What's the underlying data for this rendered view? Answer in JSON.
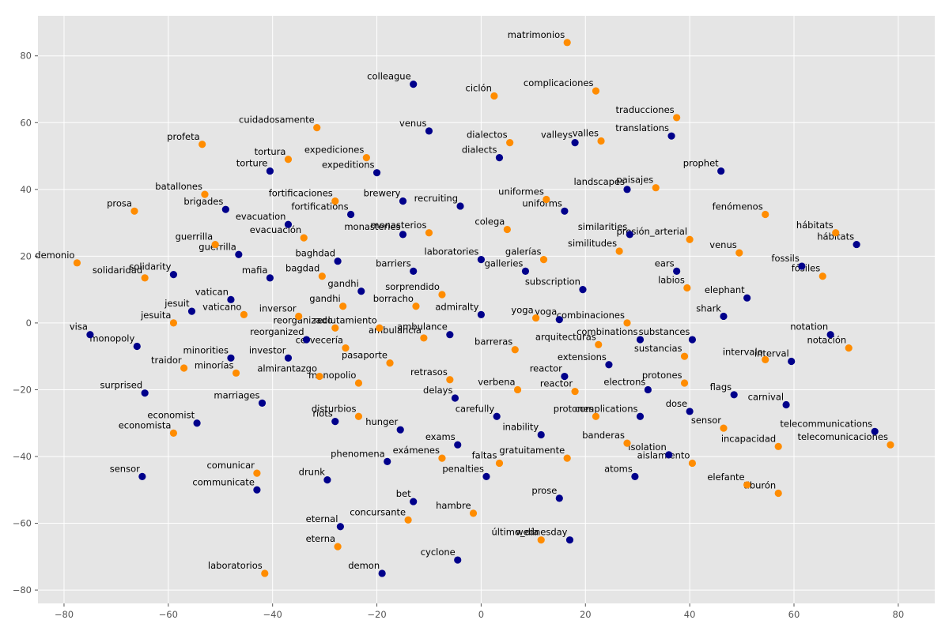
{
  "chart_data": {
    "type": "scatter",
    "title": "",
    "xlabel": "",
    "ylabel": "",
    "xlim": [
      -85,
      87
    ],
    "ylim": [
      -84,
      92
    ],
    "grid": true,
    "xticks": [
      "−80",
      "−60",
      "−40",
      "−20",
      "0",
      "20",
      "40",
      "60",
      "80"
    ],
    "yticks": [
      "−80",
      "−60",
      "−40",
      "−20",
      "0",
      "20",
      "40",
      "60",
      "80"
    ],
    "xtick_values": [
      -80,
      -60,
      -40,
      -20,
      0,
      20,
      40,
      60,
      80
    ],
    "ytick_values": [
      -80,
      -60,
      -40,
      -20,
      0,
      20,
      40,
      60,
      80
    ],
    "colors": {
      "navy": "#00008b",
      "orange": "#ff8c00",
      "background": "#e5e5e5",
      "grid": "#ffffff",
      "tick_text": "#555555"
    },
    "series": [
      {
        "color": "#00008b",
        "points": [
          {
            "x": -13,
            "y": 71.5,
            "label": "colleague"
          },
          {
            "x": -10,
            "y": 57.5,
            "label": "venus"
          },
          {
            "x": -40.5,
            "y": 45.5,
            "label": "torture"
          },
          {
            "x": -20,
            "y": 45,
            "label": "expeditions"
          },
          {
            "x": -49,
            "y": 34,
            "label": "brigades"
          },
          {
            "x": -25,
            "y": 32.5,
            "label": "fortifications"
          },
          {
            "x": -37,
            "y": 29.5,
            "label": "evacuation"
          },
          {
            "x": -15,
            "y": 36.5,
            "label": "brewery"
          },
          {
            "x": -4,
            "y": 35,
            "label": "recruiting"
          },
          {
            "x": 3.5,
            "y": 49.5,
            "label": "dialects"
          },
          {
            "x": -15,
            "y": 26.5,
            "label": "monasteries"
          },
          {
            "x": 18,
            "y": 54,
            "label": "valleys"
          },
          {
            "x": 36.5,
            "y": 56,
            "label": "translations"
          },
          {
            "x": 46,
            "y": 45.5,
            "label": "prophet"
          },
          {
            "x": 28,
            "y": 40,
            "label": "landscapes"
          },
          {
            "x": 16,
            "y": 33.5,
            "label": "uniforms"
          },
          {
            "x": 28.5,
            "y": 26.5,
            "label": "similarities"
          },
          {
            "x": 72,
            "y": 23.5,
            "label": "hábitats"
          },
          {
            "x": 61.5,
            "y": 17,
            "label": "fossils"
          },
          {
            "x": -46.5,
            "y": 20.5,
            "label": "guerrilla"
          },
          {
            "x": -59,
            "y": 14.5,
            "label": "solidarity"
          },
          {
            "x": -40.5,
            "y": 13.5,
            "label": "mafia"
          },
          {
            "x": -27.5,
            "y": 18.5,
            "label": "baghdad"
          },
          {
            "x": -13,
            "y": 15.5,
            "label": "barriers"
          },
          {
            "x": 0,
            "y": 19,
            "label": "laboratories"
          },
          {
            "x": 8.5,
            "y": 15.5,
            "label": "galleries"
          },
          {
            "x": 37.5,
            "y": 15.5,
            "label": "ears"
          },
          {
            "x": 19.5,
            "y": 10,
            "label": "subscription"
          },
          {
            "x": -23,
            "y": 9.5,
            "label": "gandhi"
          },
          {
            "x": -48,
            "y": 7,
            "label": "vatican"
          },
          {
            "x": -55.5,
            "y": 3.5,
            "label": "jesuit"
          },
          {
            "x": 51,
            "y": 7.5,
            "label": "elephant"
          },
          {
            "x": 46.5,
            "y": 2,
            "label": "shark"
          },
          {
            "x": 0,
            "y": 2.5,
            "label": "admiralty"
          },
          {
            "x": 15,
            "y": 1,
            "label": "yoga"
          },
          {
            "x": -75,
            "y": -3.5,
            "label": "visa"
          },
          {
            "x": -66,
            "y": -7,
            "label": "monopoly"
          },
          {
            "x": -6,
            "y": -3.5,
            "label": "ambulance"
          },
          {
            "x": -33.5,
            "y": -5,
            "label": "reorganized"
          },
          {
            "x": 30.5,
            "y": -5,
            "label": "combinations"
          },
          {
            "x": 40.5,
            "y": -5,
            "label": "substances"
          },
          {
            "x": 67,
            "y": -3.5,
            "label": "notation"
          },
          {
            "x": -48,
            "y": -10.5,
            "label": "minorities"
          },
          {
            "x": -37,
            "y": -10.5,
            "label": "investor"
          },
          {
            "x": 24.5,
            "y": -12.5,
            "label": "extensions"
          },
          {
            "x": 59.5,
            "y": -11.5,
            "label": "interval"
          },
          {
            "x": 16,
            "y": -16,
            "label": "reactor"
          },
          {
            "x": -64.5,
            "y": -21,
            "label": "surprised"
          },
          {
            "x": -42,
            "y": -24,
            "label": "marriages"
          },
          {
            "x": -5,
            "y": -22.5,
            "label": "delays"
          },
          {
            "x": 32,
            "y": -20,
            "label": "electrons"
          },
          {
            "x": 48.5,
            "y": -21.5,
            "label": "flags"
          },
          {
            "x": 58.5,
            "y": -24.5,
            "label": "carnival"
          },
          {
            "x": 3,
            "y": -28,
            "label": "carefully"
          },
          {
            "x": 30.5,
            "y": -28,
            "label": "complications"
          },
          {
            "x": 40,
            "y": -26.5,
            "label": "dose"
          },
          {
            "x": -54.5,
            "y": -30,
            "label": "economist"
          },
          {
            "x": -28,
            "y": -29.5,
            "label": "riots"
          },
          {
            "x": -15.5,
            "y": -32,
            "label": "hunger"
          },
          {
            "x": 11.5,
            "y": -33.5,
            "label": "inability"
          },
          {
            "x": 75.5,
            "y": -32.5,
            "label": "telecommunications"
          },
          {
            "x": -4.5,
            "y": -36.5,
            "label": "exams"
          },
          {
            "x": 36,
            "y": -39.5,
            "label": "isolation"
          },
          {
            "x": -18,
            "y": -41.5,
            "label": "phenomena"
          },
          {
            "x": -65,
            "y": -46,
            "label": "sensor"
          },
          {
            "x": -29.5,
            "y": -47,
            "label": "drunk"
          },
          {
            "x": 1,
            "y": -46,
            "label": "penalties"
          },
          {
            "x": 29.5,
            "y": -46,
            "label": "atoms"
          },
          {
            "x": -43,
            "y": -50,
            "label": "communicate"
          },
          {
            "x": 15,
            "y": -52.5,
            "label": "prose"
          },
          {
            "x": -13,
            "y": -53.5,
            "label": "bet"
          },
          {
            "x": -27,
            "y": -61,
            "label": "eternal"
          },
          {
            "x": 17,
            "y": -65,
            "label": "wednesday"
          },
          {
            "x": -4.5,
            "y": -71,
            "label": "cyclone"
          },
          {
            "x": -19,
            "y": -75,
            "label": "demon"
          }
        ]
      },
      {
        "color": "#ff8c00",
        "points": [
          {
            "x": 16.5,
            "y": 84,
            "label": "matrimonios"
          },
          {
            "x": 2.5,
            "y": 68,
            "label": "ciclón"
          },
          {
            "x": 22,
            "y": 69.5,
            "label": "complicaciones"
          },
          {
            "x": 37.5,
            "y": 61.5,
            "label": "traducciones"
          },
          {
            "x": -31.5,
            "y": 58.5,
            "label": "cuidadosamente"
          },
          {
            "x": -53.5,
            "y": 53.5,
            "label": "profeta"
          },
          {
            "x": 5.5,
            "y": 54,
            "label": "dialectos"
          },
          {
            "x": 23,
            "y": 54.5,
            "label": "valles"
          },
          {
            "x": -37,
            "y": 49,
            "label": "tortura"
          },
          {
            "x": -22,
            "y": 49.5,
            "label": "expediciones"
          },
          {
            "x": 33.5,
            "y": 40.5,
            "label": "paisajes"
          },
          {
            "x": -53,
            "y": 38.5,
            "label": "batallones"
          },
          {
            "x": -28,
            "y": 36.5,
            "label": "fortificaciones"
          },
          {
            "x": 12.5,
            "y": 37,
            "label": "uniformes"
          },
          {
            "x": 54.5,
            "y": 32.5,
            "label": "fenómenos"
          },
          {
            "x": -66.5,
            "y": 33.5,
            "label": "prosa"
          },
          {
            "x": -34,
            "y": 25.5,
            "label": "evacuación"
          },
          {
            "x": -10,
            "y": 27,
            "label": "monasterios"
          },
          {
            "x": 5,
            "y": 28,
            "label": "colega"
          },
          {
            "x": 40,
            "y": 25,
            "label": "presión_arterial"
          },
          {
            "x": 68,
            "y": 27,
            "label": "hábitats"
          },
          {
            "x": -51,
            "y": 23.5,
            "label": "guerrilla"
          },
          {
            "x": 26.5,
            "y": 21.5,
            "label": "similitudes"
          },
          {
            "x": 49.5,
            "y": 21,
            "label": "venus"
          },
          {
            "x": 12,
            "y": 19,
            "label": "galerías"
          },
          {
            "x": -77.5,
            "y": 18,
            "label": "demonio"
          },
          {
            "x": -64.5,
            "y": 13.5,
            "label": "solidaridad"
          },
          {
            "x": -30.5,
            "y": 14,
            "label": "bagdad"
          },
          {
            "x": 65.5,
            "y": 14,
            "label": "fósiles"
          },
          {
            "x": 39.5,
            "y": 10.5,
            "label": "labios"
          },
          {
            "x": -7.5,
            "y": 8.5,
            "label": "sorprendido"
          },
          {
            "x": -26.5,
            "y": 5,
            "label": "gandhi"
          },
          {
            "x": -12.5,
            "y": 5,
            "label": "borracho"
          },
          {
            "x": -45.5,
            "y": 2.5,
            "label": "vaticano"
          },
          {
            "x": -35,
            "y": 2,
            "label": "inversor"
          },
          {
            "x": -59,
            "y": 0,
            "label": "jesuita"
          },
          {
            "x": -28,
            "y": -1.5,
            "label": "reorganizado"
          },
          {
            "x": -19.5,
            "y": -1.5,
            "label": "reclutamiento"
          },
          {
            "x": 10.5,
            "y": 1.5,
            "label": "yoga"
          },
          {
            "x": 28,
            "y": 0,
            "label": "combinaciones"
          },
          {
            "x": -11,
            "y": -4.5,
            "label": "ambulancia"
          },
          {
            "x": 22.5,
            "y": -6.5,
            "label": "arquitecturas"
          },
          {
            "x": -26,
            "y": -7.5,
            "label": "cervecería"
          },
          {
            "x": 6.5,
            "y": -8,
            "label": "barreras"
          },
          {
            "x": 39,
            "y": -10,
            "label": "sustancias"
          },
          {
            "x": 70.5,
            "y": -7.5,
            "label": "notación"
          },
          {
            "x": 54.5,
            "y": -11,
            "label": "intervalo"
          },
          {
            "x": -57,
            "y": -13.5,
            "label": "traidor"
          },
          {
            "x": -47,
            "y": -15,
            "label": "minorías"
          },
          {
            "x": -17.5,
            "y": -12,
            "label": "pasaporte"
          },
          {
            "x": -31,
            "y": -16,
            "label": "almirantazgo"
          },
          {
            "x": -23.5,
            "y": -18,
            "label": "monopolio"
          },
          {
            "x": -6,
            "y": -17,
            "label": "retrasos"
          },
          {
            "x": 7,
            "y": -20,
            "label": "verbena"
          },
          {
            "x": 18,
            "y": -20.5,
            "label": "reactor"
          },
          {
            "x": 39,
            "y": -18,
            "label": "protones"
          },
          {
            "x": -59,
            "y": -33,
            "label": "economista"
          },
          {
            "x": -23.5,
            "y": -28,
            "label": "disturbios"
          },
          {
            "x": 22,
            "y": -28,
            "label": "protones"
          },
          {
            "x": 46.5,
            "y": -31.5,
            "label": "sensor"
          },
          {
            "x": 28,
            "y": -36,
            "label": "banderas"
          },
          {
            "x": 57,
            "y": -37,
            "label": "incapacidad"
          },
          {
            "x": 78.5,
            "y": -36.5,
            "label": "telecomunicaciones"
          },
          {
            "x": -7.5,
            "y": -40.5,
            "label": "exámenes"
          },
          {
            "x": 3.5,
            "y": -42,
            "label": "faltas"
          },
          {
            "x": 16.5,
            "y": -40.5,
            "label": "gratuitamente"
          },
          {
            "x": 40.5,
            "y": -42,
            "label": "aislamiento"
          },
          {
            "x": -43,
            "y": -45,
            "label": "comunicar"
          },
          {
            "x": 51,
            "y": -48.5,
            "label": "elefante"
          },
          {
            "x": 57,
            "y": -51,
            "label": "tiburón"
          },
          {
            "x": -14,
            "y": -59,
            "label": "concursante"
          },
          {
            "x": -1.5,
            "y": -57,
            "label": "hambre"
          },
          {
            "x": 11.5,
            "y": -65,
            "label": "último_día"
          },
          {
            "x": -27.5,
            "y": -67,
            "label": "eterna"
          },
          {
            "x": -41.5,
            "y": -75,
            "label": "laboratorios"
          }
        ]
      }
    ]
  }
}
